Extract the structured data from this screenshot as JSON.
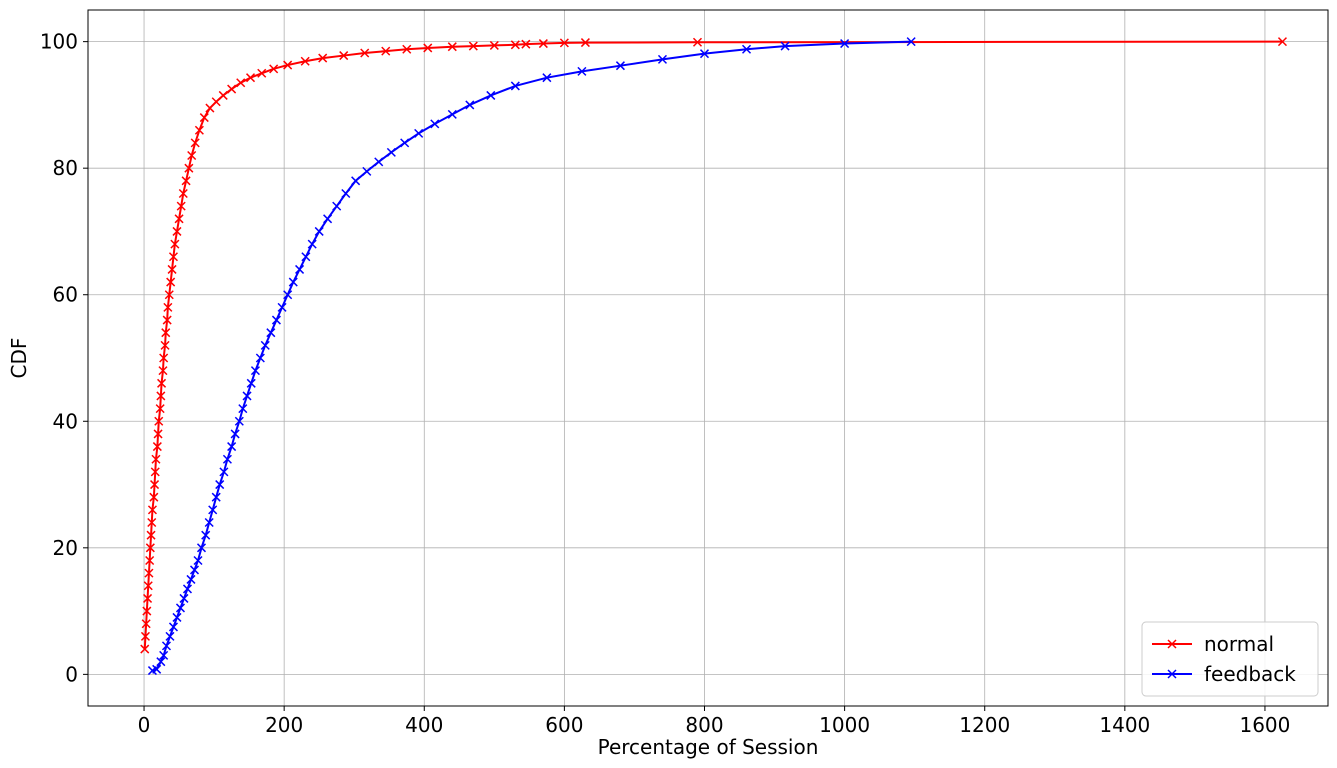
{
  "chart_data": {
    "type": "line",
    "xlabel": "Percentage of Session",
    "ylabel": "CDF",
    "xlim": [
      -80,
      1690
    ],
    "ylim": [
      -5,
      105
    ],
    "xticks": [
      0,
      200,
      400,
      600,
      800,
      1000,
      1200,
      1400,
      1600
    ],
    "yticks": [
      0,
      20,
      40,
      60,
      80,
      100
    ],
    "grid": true,
    "legend_position": "bottom-right",
    "marker": "x",
    "series": [
      {
        "name": "normal",
        "color": "#ff0000",
        "points": [
          [
            1,
            4
          ],
          [
            2,
            6
          ],
          [
            3,
            8
          ],
          [
            4,
            10
          ],
          [
            5,
            12
          ],
          [
            6,
            14
          ],
          [
            7,
            16
          ],
          [
            8,
            18
          ],
          [
            9,
            20
          ],
          [
            10,
            22
          ],
          [
            11,
            24
          ],
          [
            12,
            26
          ],
          [
            14,
            28
          ],
          [
            15,
            30
          ],
          [
            16,
            32
          ],
          [
            17,
            34
          ],
          [
            19,
            36
          ],
          [
            20,
            38
          ],
          [
            21,
            40
          ],
          [
            23,
            42
          ],
          [
            24,
            44
          ],
          [
            25,
            46
          ],
          [
            27,
            48
          ],
          [
            28,
            50
          ],
          [
            30,
            52
          ],
          [
            31,
            54
          ],
          [
            33,
            56
          ],
          [
            34,
            58
          ],
          [
            36,
            60
          ],
          [
            38,
            62
          ],
          [
            40,
            64
          ],
          [
            42,
            66
          ],
          [
            44,
            68
          ],
          [
            47,
            70
          ],
          [
            50,
            72
          ],
          [
            53,
            74
          ],
          [
            56,
            76
          ],
          [
            60,
            78
          ],
          [
            64,
            80
          ],
          [
            68,
            82
          ],
          [
            73,
            84
          ],
          [
            79,
            86
          ],
          [
            86,
            88
          ],
          [
            94,
            89.5
          ],
          [
            103,
            90.5
          ],
          [
            113,
            91.5
          ],
          [
            125,
            92.5
          ],
          [
            138,
            93.5
          ],
          [
            152,
            94.3
          ],
          [
            168,
            95
          ],
          [
            185,
            95.7
          ],
          [
            205,
            96.3
          ],
          [
            230,
            96.9
          ],
          [
            255,
            97.4
          ],
          [
            285,
            97.8
          ],
          [
            315,
            98.2
          ],
          [
            345,
            98.5
          ],
          [
            375,
            98.8
          ],
          [
            405,
            99
          ],
          [
            440,
            99.2
          ],
          [
            470,
            99.3
          ],
          [
            500,
            99.4
          ],
          [
            530,
            99.5
          ],
          [
            545,
            99.6
          ],
          [
            570,
            99.7
          ],
          [
            600,
            99.8
          ],
          [
            630,
            99.85
          ],
          [
            790,
            99.9
          ],
          [
            1625,
            100
          ]
        ]
      },
      {
        "name": "feedback",
        "color": "#0000ff",
        "points": [
          [
            12,
            0.6
          ],
          [
            18,
            0.8
          ],
          [
            24,
            2
          ],
          [
            28,
            3
          ],
          [
            32,
            4.5
          ],
          [
            37,
            6
          ],
          [
            42,
            7.5
          ],
          [
            47,
            9
          ],
          [
            52,
            10.5
          ],
          [
            57,
            12
          ],
          [
            62,
            13.5
          ],
          [
            67,
            15
          ],
          [
            72,
            16.5
          ],
          [
            77,
            18
          ],
          [
            82,
            20
          ],
          [
            88,
            22
          ],
          [
            93,
            24
          ],
          [
            98,
            26
          ],
          [
            103,
            28
          ],
          [
            108,
            30
          ],
          [
            114,
            32
          ],
          [
            119,
            34
          ],
          [
            125,
            36
          ],
          [
            130,
            38
          ],
          [
            136,
            40
          ],
          [
            141,
            42
          ],
          [
            147,
            44
          ],
          [
            153,
            46
          ],
          [
            159,
            48
          ],
          [
            166,
            50
          ],
          [
            173,
            52
          ],
          [
            181,
            54
          ],
          [
            189,
            56
          ],
          [
            197,
            58
          ],
          [
            205,
            60
          ],
          [
            213,
            62
          ],
          [
            222,
            64
          ],
          [
            231,
            66
          ],
          [
            240,
            68
          ],
          [
            250,
            70
          ],
          [
            262,
            72
          ],
          [
            275,
            74
          ],
          [
            288,
            76
          ],
          [
            302,
            78
          ],
          [
            318,
            79.5
          ],
          [
            335,
            81
          ],
          [
            353,
            82.5
          ],
          [
            372,
            84
          ],
          [
            392,
            85.5
          ],
          [
            415,
            87
          ],
          [
            440,
            88.5
          ],
          [
            465,
            90
          ],
          [
            495,
            91.5
          ],
          [
            530,
            93
          ],
          [
            575,
            94.3
          ],
          [
            625,
            95.3
          ],
          [
            680,
            96.2
          ],
          [
            740,
            97.2
          ],
          [
            800,
            98.1
          ],
          [
            860,
            98.8
          ],
          [
            915,
            99.3
          ],
          [
            1000,
            99.7
          ],
          [
            1095,
            100
          ]
        ]
      }
    ]
  }
}
